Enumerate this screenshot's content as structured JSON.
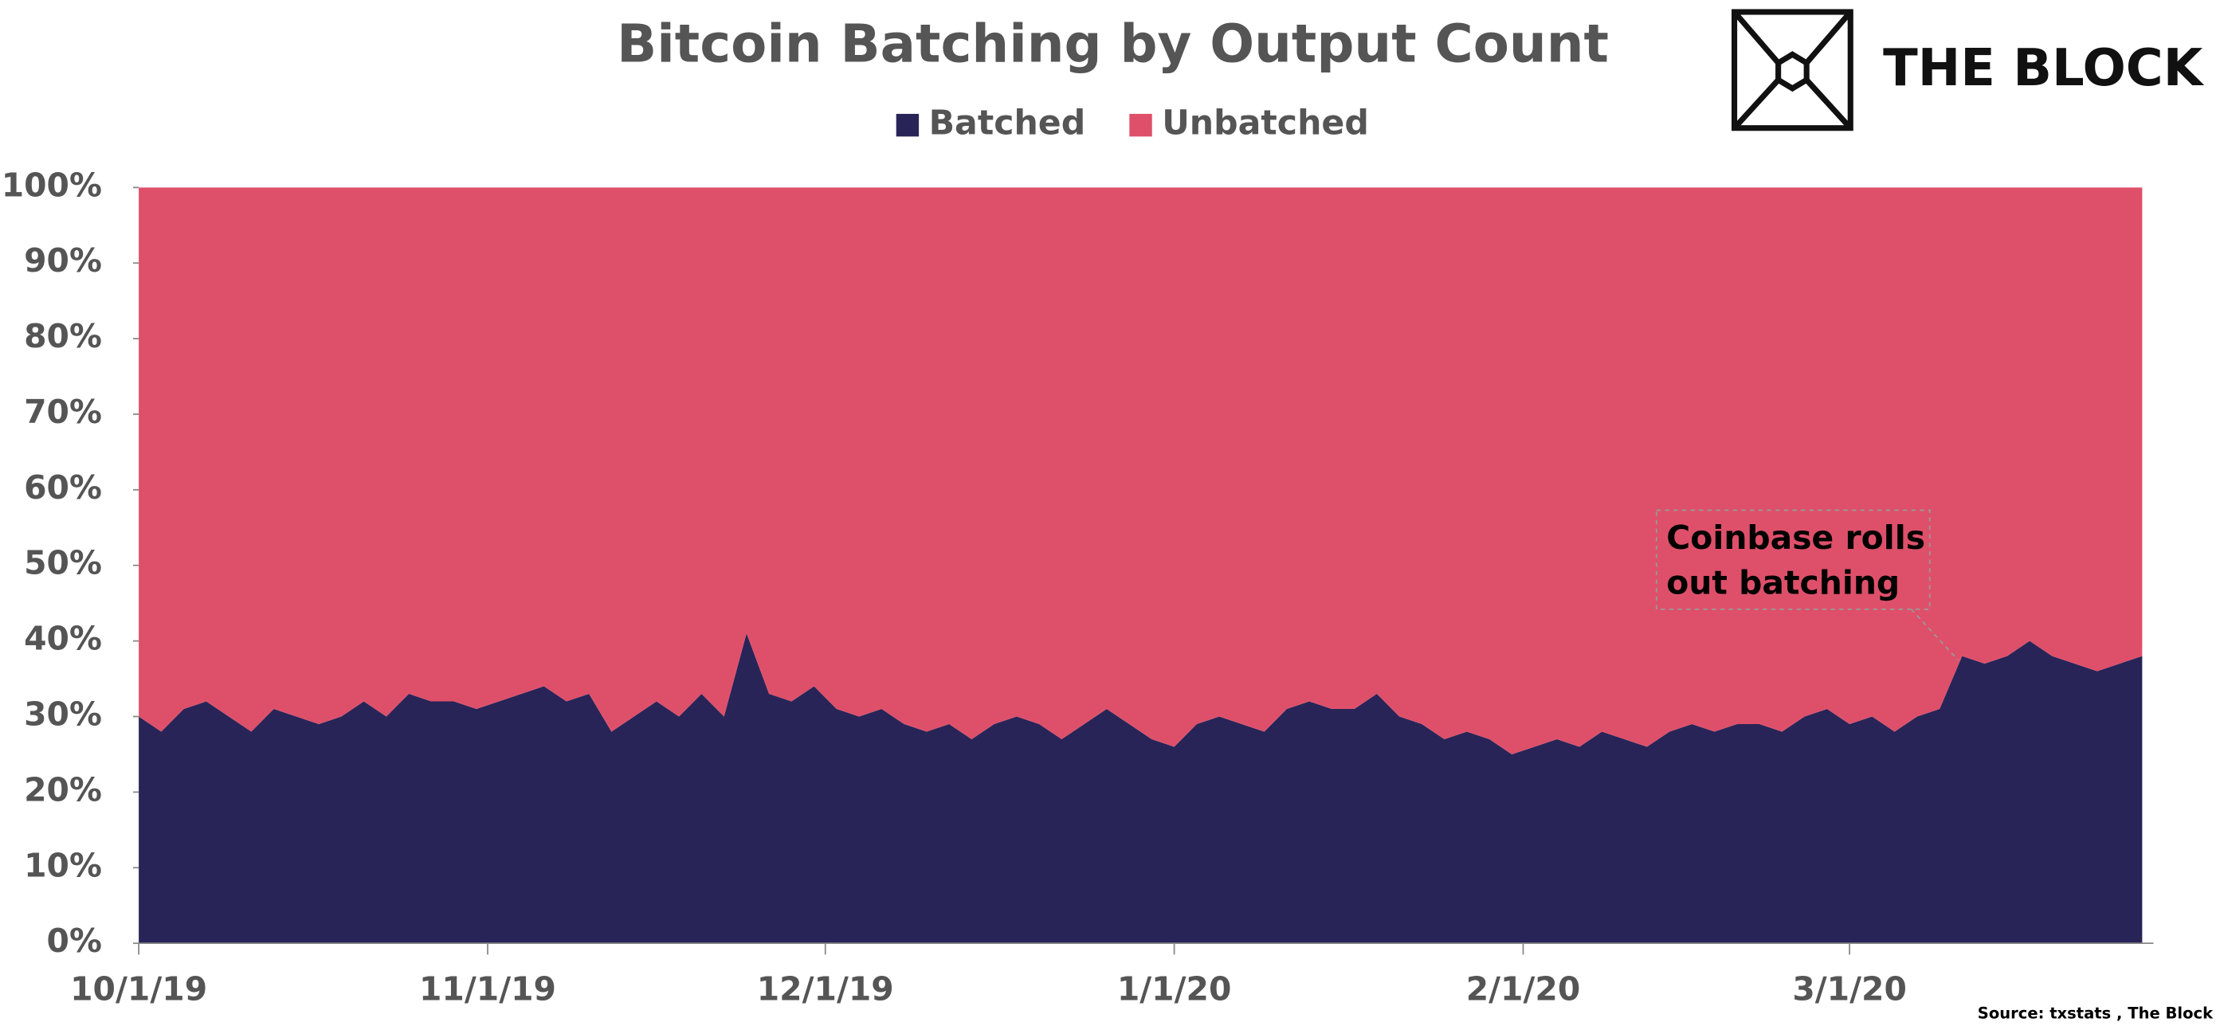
{
  "chart_data": {
    "type": "stacked_area",
    "title": "Bitcoin Batching by Output Count",
    "brand": "THE BLOCK",
    "source": "Source: txstats , The Block",
    "annotation": [
      "Coinbase rolls",
      "out batching"
    ],
    "legend": "top",
    "x": [
      "10/1/19",
      "10/3/19",
      "10/5/19",
      "10/7/19",
      "10/9/19",
      "10/11/19",
      "10/13/19",
      "10/15/19",
      "10/17/19",
      "10/19/19",
      "10/21/19",
      "10/23/19",
      "10/25/19",
      "10/27/19",
      "10/29/19",
      "10/31/19",
      "11/2/19",
      "11/4/19",
      "11/6/19",
      "11/8/19",
      "11/10/19",
      "11/12/19",
      "11/14/19",
      "11/16/19",
      "11/18/19",
      "11/20/19",
      "11/22/19",
      "11/24/19",
      "11/26/19",
      "11/28/19",
      "11/30/19",
      "12/2/19",
      "12/4/19",
      "12/6/19",
      "12/8/19",
      "12/10/19",
      "12/12/19",
      "12/14/19",
      "12/16/19",
      "12/18/19",
      "12/20/19",
      "12/22/19",
      "12/24/19",
      "12/26/19",
      "12/28/19",
      "12/30/19",
      "1/1/20",
      "1/3/20",
      "1/5/20",
      "1/7/20",
      "1/9/20",
      "1/11/20",
      "1/13/20",
      "1/15/20",
      "1/17/20",
      "1/19/20",
      "1/21/20",
      "1/23/20",
      "1/25/20",
      "1/27/20",
      "1/29/20",
      "1/31/20",
      "2/2/20",
      "2/4/20",
      "2/6/20",
      "2/8/20",
      "2/10/20",
      "2/12/20",
      "2/14/20",
      "2/16/20",
      "2/18/20",
      "2/20/20",
      "2/22/20",
      "2/24/20",
      "2/26/20",
      "2/28/20",
      "3/1/20",
      "3/3/20",
      "3/5/20",
      "3/7/20",
      "3/9/20",
      "3/11/20",
      "3/13/20",
      "3/15/20",
      "3/17/20",
      "3/19/20",
      "3/21/20",
      "3/23/20",
      "3/25/20",
      "3/27/20"
    ],
    "series": [
      {
        "name": "Batched",
        "color": "#282457",
        "values": [
          30,
          28,
          31,
          32,
          30,
          28,
          31,
          30,
          29,
          30,
          32,
          30,
          33,
          32,
          32,
          31,
          32,
          33,
          34,
          32,
          33,
          28,
          30,
          32,
          30,
          33,
          30,
          41,
          33,
          32,
          34,
          31,
          30,
          31,
          29,
          28,
          29,
          27,
          29,
          30,
          29,
          27,
          29,
          31,
          29,
          27,
          26,
          29,
          30,
          29,
          28,
          31,
          32,
          31,
          31,
          33,
          30,
          29,
          27,
          28,
          27,
          25,
          26,
          27,
          26,
          28,
          27,
          26,
          28,
          29,
          28,
          29,
          29,
          28,
          30,
          31,
          29,
          30,
          28,
          30,
          31,
          38,
          37,
          38,
          40,
          38,
          37,
          36,
          37,
          38
        ]
      },
      {
        "name": "Unbatched",
        "color": "#de506a",
        "values": [
          70,
          72,
          69,
          68,
          70,
          72,
          69,
          70,
          71,
          70,
          68,
          70,
          67,
          68,
          68,
          69,
          68,
          67,
          66,
          68,
          67,
          72,
          70,
          68,
          70,
          67,
          70,
          59,
          67,
          68,
          66,
          69,
          70,
          69,
          71,
          72,
          71,
          73,
          71,
          70,
          71,
          73,
          71,
          69,
          71,
          73,
          74,
          71,
          70,
          71,
          72,
          69,
          68,
          69,
          69,
          67,
          70,
          71,
          73,
          72,
          73,
          75,
          74,
          73,
          74,
          72,
          73,
          74,
          72,
          71,
          72,
          71,
          71,
          72,
          70,
          69,
          71,
          70,
          72,
          70,
          69,
          62,
          63,
          62,
          60,
          62,
          63,
          64,
          63,
          62
        ]
      }
    ],
    "xlim": [
      "10/1/19",
      "3/28/20"
    ],
    "xticks": [
      "10/1/19",
      "11/1/19",
      "12/1/19",
      "1/1/20",
      "2/1/20",
      "3/1/20"
    ],
    "ylim": [
      0,
      100
    ],
    "yticks": [
      {
        "value": 0,
        "label": "0%"
      },
      {
        "value": 10,
        "label": "10%"
      },
      {
        "value": 20,
        "label": "20%"
      },
      {
        "value": 30,
        "label": "30%"
      },
      {
        "value": 40,
        "label": "40%"
      },
      {
        "value": 50,
        "label": "50%"
      },
      {
        "value": 60,
        "label": "60%"
      },
      {
        "value": 70,
        "label": "70%"
      },
      {
        "value": 80,
        "label": "80%"
      },
      {
        "value": 90,
        "label": "90%"
      },
      {
        "value": 100,
        "label": "100%"
      }
    ],
    "grid": false
  }
}
